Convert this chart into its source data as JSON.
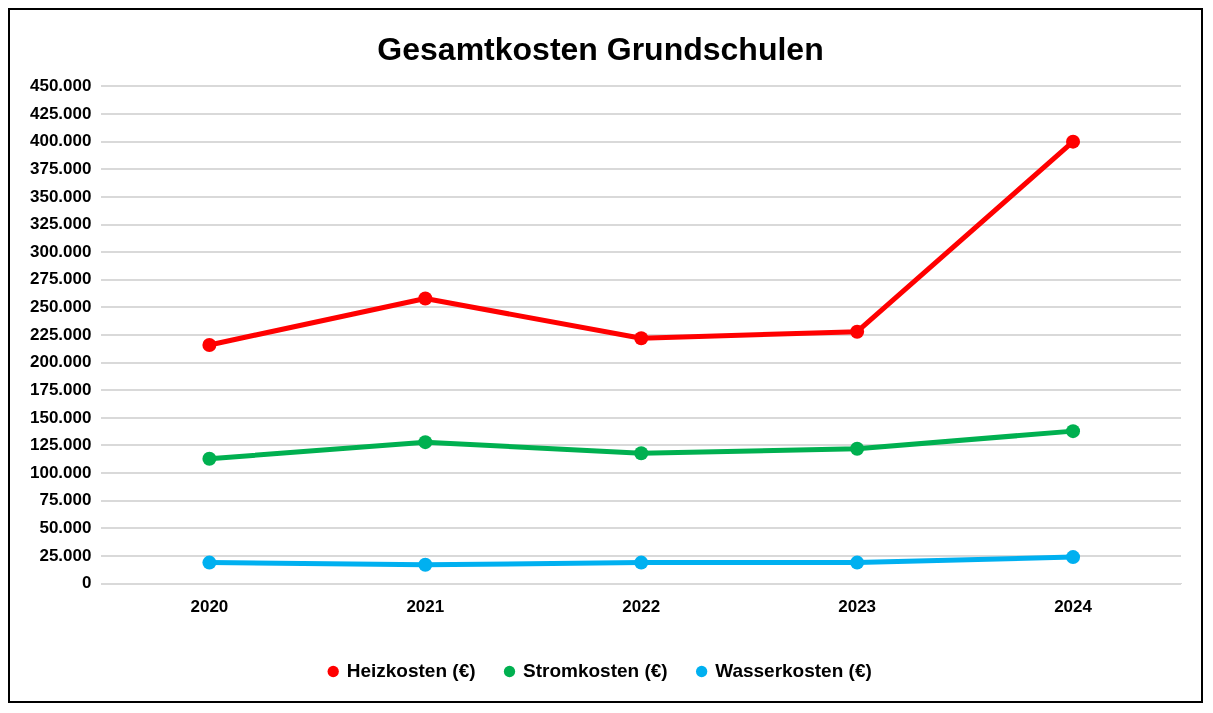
{
  "chart_data": {
    "type": "line",
    "title": "Gesamtkosten Grundschulen",
    "categories": [
      "2020",
      "2021",
      "2022",
      "2023",
      "2024"
    ],
    "series": [
      {
        "name": "Heizkosten (€)",
        "color": "#ff0000",
        "values": [
          216000,
          258000,
          222000,
          228000,
          400000
        ]
      },
      {
        "name": "Stromkosten (€)",
        "color": "#00b050",
        "values": [
          113000,
          128000,
          118000,
          122000,
          138000
        ]
      },
      {
        "name": "Wasserkosten (€)",
        "color": "#00b0f0",
        "values": [
          19000,
          17000,
          19000,
          19000,
          24000
        ]
      }
    ],
    "ylim": [
      0,
      450000
    ],
    "yticks": [
      {
        "value": 0,
        "label": "0"
      },
      {
        "value": 25000,
        "label": "25.000"
      },
      {
        "value": 50000,
        "label": "50.000"
      },
      {
        "value": 75000,
        "label": "75.000"
      },
      {
        "value": 100000,
        "label": "100.000"
      },
      {
        "value": 125000,
        "label": "125.000"
      },
      {
        "value": 150000,
        "label": "150.000"
      },
      {
        "value": 175000,
        "label": "175.000"
      },
      {
        "value": 200000,
        "label": "200.000"
      },
      {
        "value": 225000,
        "label": "225.000"
      },
      {
        "value": 250000,
        "label": "250.000"
      },
      {
        "value": 275000,
        "label": "275.000"
      },
      {
        "value": 300000,
        "label": "300.000"
      },
      {
        "value": 325000,
        "label": "325.000"
      },
      {
        "value": 350000,
        "label": "350.000"
      },
      {
        "value": 375000,
        "label": "375.000"
      },
      {
        "value": 400000,
        "label": "400.000"
      },
      {
        "value": 425000,
        "label": "425.000"
      },
      {
        "value": 450000,
        "label": "450.000"
      }
    ],
    "grid": "y",
    "legend": "bottom",
    "marker": "circle",
    "line_style": "solid"
  }
}
